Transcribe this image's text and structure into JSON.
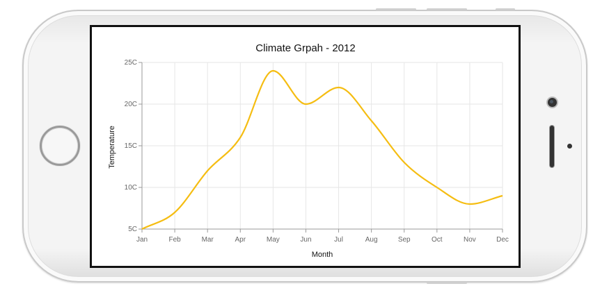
{
  "device": {
    "type": "phone-landscape"
  },
  "chart_data": {
    "type": "line",
    "title": "Climate Grpah - 2012",
    "xlabel": "Month",
    "ylabel": "Temperature",
    "categories": [
      "Jan",
      "Feb",
      "Mar",
      "Apr",
      "May",
      "Jun",
      "Jul",
      "Aug",
      "Sep",
      "Oct",
      "Nov",
      "Dec"
    ],
    "series": [
      {
        "values": [
          5,
          7,
          12,
          16,
          24,
          20,
          22,
          18,
          13,
          10,
          8,
          9
        ],
        "color": "#f5bd12"
      }
    ],
    "ylim": [
      5,
      25
    ],
    "yticks": [
      5,
      10,
      15,
      20,
      25
    ],
    "ytick_suffix": "C",
    "grid": true,
    "line_style": "smooth"
  }
}
